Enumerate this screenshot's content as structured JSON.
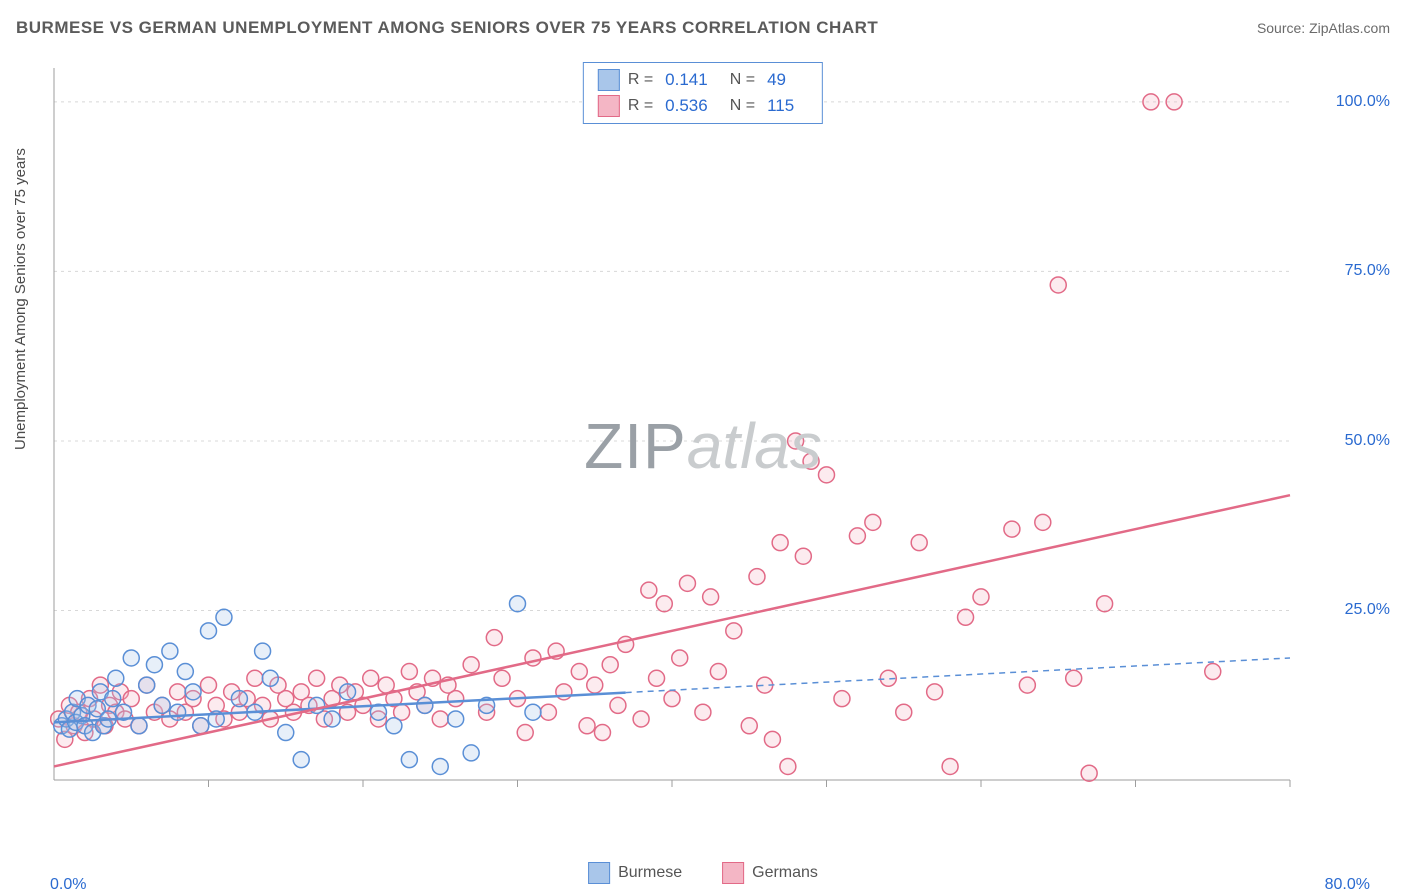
{
  "title": "BURMESE VS GERMAN UNEMPLOYMENT AMONG SENIORS OVER 75 YEARS CORRELATION CHART",
  "source": "Source: ZipAtlas.com",
  "y_axis_label": "Unemployment Among Seniors over 75 years",
  "watermark_part1": "ZIP",
  "watermark_part2": "atlas",
  "chart": {
    "type": "scatter",
    "xlim": [
      0,
      80
    ],
    "ylim": [
      0,
      105
    ],
    "x_ticks_major": [
      10,
      20,
      30,
      40,
      50,
      60,
      70,
      80
    ],
    "x_tick_labels": {
      "left": "0.0%",
      "right": "80.0%"
    },
    "y_ticks": [
      25,
      50,
      75,
      100
    ],
    "y_tick_labels": [
      "25.0%",
      "50.0%",
      "75.0%",
      "100.0%"
    ],
    "background_color": "#ffffff",
    "grid_color": "#d8d8d8",
    "grid_dash": "3,4",
    "axis_color": "#9e9e9e",
    "marker_radius": 8,
    "marker_stroke_width": 1.5,
    "marker_fill_opacity": 0.28,
    "line_width": 2.5,
    "series": [
      {
        "id": "burmese",
        "label": "Burmese",
        "color_stroke": "#5a8fd6",
        "color_fill": "#a9c6ea",
        "R": "0.141",
        "N": "49",
        "trend": {
          "x1": 0,
          "y1": 8.5,
          "x2": 80,
          "y2": 18.0,
          "solid_until_x": 37
        },
        "points": [
          [
            0.5,
            8
          ],
          [
            0.8,
            9
          ],
          [
            1.0,
            7.5
          ],
          [
            1.2,
            10
          ],
          [
            1.4,
            8.5
          ],
          [
            1.5,
            12
          ],
          [
            1.8,
            9.5
          ],
          [
            2.0,
            8
          ],
          [
            2.2,
            11
          ],
          [
            2.5,
            7
          ],
          [
            2.8,
            10.5
          ],
          [
            3.0,
            13
          ],
          [
            3.2,
            8
          ],
          [
            3.5,
            9
          ],
          [
            3.8,
            12
          ],
          [
            4.0,
            15
          ],
          [
            4.5,
            10
          ],
          [
            5.0,
            18
          ],
          [
            5.5,
            8
          ],
          [
            6.0,
            14
          ],
          [
            6.5,
            17
          ],
          [
            7.0,
            11
          ],
          [
            7.5,
            19
          ],
          [
            8.0,
            10
          ],
          [
            8.5,
            16
          ],
          [
            9.0,
            13
          ],
          [
            9.5,
            8
          ],
          [
            10.0,
            22
          ],
          [
            10.5,
            9
          ],
          [
            11.0,
            24
          ],
          [
            12.0,
            12
          ],
          [
            13.0,
            10
          ],
          [
            13.5,
            19
          ],
          [
            14.0,
            15
          ],
          [
            15.0,
            7
          ],
          [
            16.0,
            3
          ],
          [
            17.0,
            11
          ],
          [
            18.0,
            9
          ],
          [
            19.0,
            13
          ],
          [
            21.0,
            10
          ],
          [
            22.0,
            8
          ],
          [
            23.0,
            3
          ],
          [
            24.0,
            11
          ],
          [
            25.0,
            2
          ],
          [
            26.0,
            9
          ],
          [
            27.0,
            4
          ],
          [
            28.0,
            11
          ],
          [
            30.0,
            26
          ],
          [
            31.0,
            10
          ]
        ]
      },
      {
        "id": "germans",
        "label": "Germans",
        "color_stroke": "#e26a87",
        "color_fill": "#f4b6c5",
        "R": "0.536",
        "N": "115",
        "trend": {
          "x1": 0,
          "y1": 2.0,
          "x2": 80,
          "y2": 42.0,
          "solid_until_x": 80
        },
        "points": [
          [
            0.3,
            9
          ],
          [
            0.7,
            6
          ],
          [
            1.0,
            11
          ],
          [
            1.3,
            8
          ],
          [
            1.6,
            10
          ],
          [
            2.0,
            7
          ],
          [
            2.3,
            12
          ],
          [
            2.6,
            9
          ],
          [
            3.0,
            14
          ],
          [
            3.3,
            8
          ],
          [
            3.6,
            11
          ],
          [
            4.0,
            10
          ],
          [
            4.3,
            13
          ],
          [
            4.6,
            9
          ],
          [
            5.0,
            12
          ],
          [
            5.5,
            8
          ],
          [
            6.0,
            14
          ],
          [
            6.5,
            10
          ],
          [
            7.0,
            11
          ],
          [
            7.5,
            9
          ],
          [
            8.0,
            13
          ],
          [
            8.5,
            10
          ],
          [
            9.0,
            12
          ],
          [
            9.5,
            8
          ],
          [
            10.0,
            14
          ],
          [
            10.5,
            11
          ],
          [
            11.0,
            9
          ],
          [
            11.5,
            13
          ],
          [
            12.0,
            10
          ],
          [
            12.5,
            12
          ],
          [
            13.0,
            15
          ],
          [
            13.5,
            11
          ],
          [
            14.0,
            9
          ],
          [
            14.5,
            14
          ],
          [
            15.0,
            12
          ],
          [
            15.5,
            10
          ],
          [
            16.0,
            13
          ],
          [
            16.5,
            11
          ],
          [
            17.0,
            15
          ],
          [
            17.5,
            9
          ],
          [
            18.0,
            12
          ],
          [
            18.5,
            14
          ],
          [
            19.0,
            10
          ],
          [
            19.5,
            13
          ],
          [
            20.0,
            11
          ],
          [
            20.5,
            15
          ],
          [
            21.0,
            9
          ],
          [
            21.5,
            14
          ],
          [
            22.0,
            12
          ],
          [
            22.5,
            10
          ],
          [
            23.0,
            16
          ],
          [
            23.5,
            13
          ],
          [
            24.0,
            11
          ],
          [
            24.5,
            15
          ],
          [
            25.0,
            9
          ],
          [
            25.5,
            14
          ],
          [
            26.0,
            12
          ],
          [
            27.0,
            17
          ],
          [
            28.0,
            10
          ],
          [
            28.5,
            21
          ],
          [
            29.0,
            15
          ],
          [
            30.0,
            12
          ],
          [
            30.5,
            7
          ],
          [
            31.0,
            18
          ],
          [
            32.0,
            10
          ],
          [
            32.5,
            19
          ],
          [
            33.0,
            13
          ],
          [
            34.0,
            16
          ],
          [
            34.5,
            8
          ],
          [
            35.0,
            14
          ],
          [
            35.5,
            7
          ],
          [
            36.0,
            17
          ],
          [
            36.5,
            11
          ],
          [
            37.0,
            20
          ],
          [
            38.0,
            9
          ],
          [
            38.5,
            28
          ],
          [
            39.0,
            15
          ],
          [
            39.5,
            26
          ],
          [
            40.0,
            12
          ],
          [
            40.5,
            18
          ],
          [
            41.0,
            29
          ],
          [
            42.0,
            10
          ],
          [
            42.5,
            27
          ],
          [
            43.0,
            16
          ],
          [
            44.0,
            22
          ],
          [
            45.0,
            8
          ],
          [
            45.5,
            30
          ],
          [
            46.0,
            14
          ],
          [
            47.0,
            35
          ],
          [
            47.5,
            2
          ],
          [
            48.0,
            50
          ],
          [
            48.5,
            33
          ],
          [
            49.0,
            47
          ],
          [
            50.0,
            45
          ],
          [
            51.0,
            12
          ],
          [
            52.0,
            36
          ],
          [
            53.0,
            38
          ],
          [
            54.0,
            15
          ],
          [
            56.0,
            35
          ],
          [
            57.0,
            13
          ],
          [
            58.0,
            2
          ],
          [
            59.0,
            24
          ],
          [
            60.0,
            27
          ],
          [
            62.0,
            37
          ],
          [
            63.0,
            14
          ],
          [
            64.0,
            38
          ],
          [
            65.0,
            73
          ],
          [
            66.0,
            15
          ],
          [
            67.0,
            1
          ],
          [
            71.0,
            100
          ],
          [
            72.5,
            100
          ],
          [
            75.0,
            16
          ],
          [
            68.0,
            26
          ],
          [
            55.0,
            10
          ],
          [
            46.5,
            6
          ]
        ]
      }
    ]
  },
  "top_legend_labels": {
    "R": "R =",
    "N": "N ="
  },
  "bottom_legend": [
    "Burmese",
    "Germans"
  ]
}
